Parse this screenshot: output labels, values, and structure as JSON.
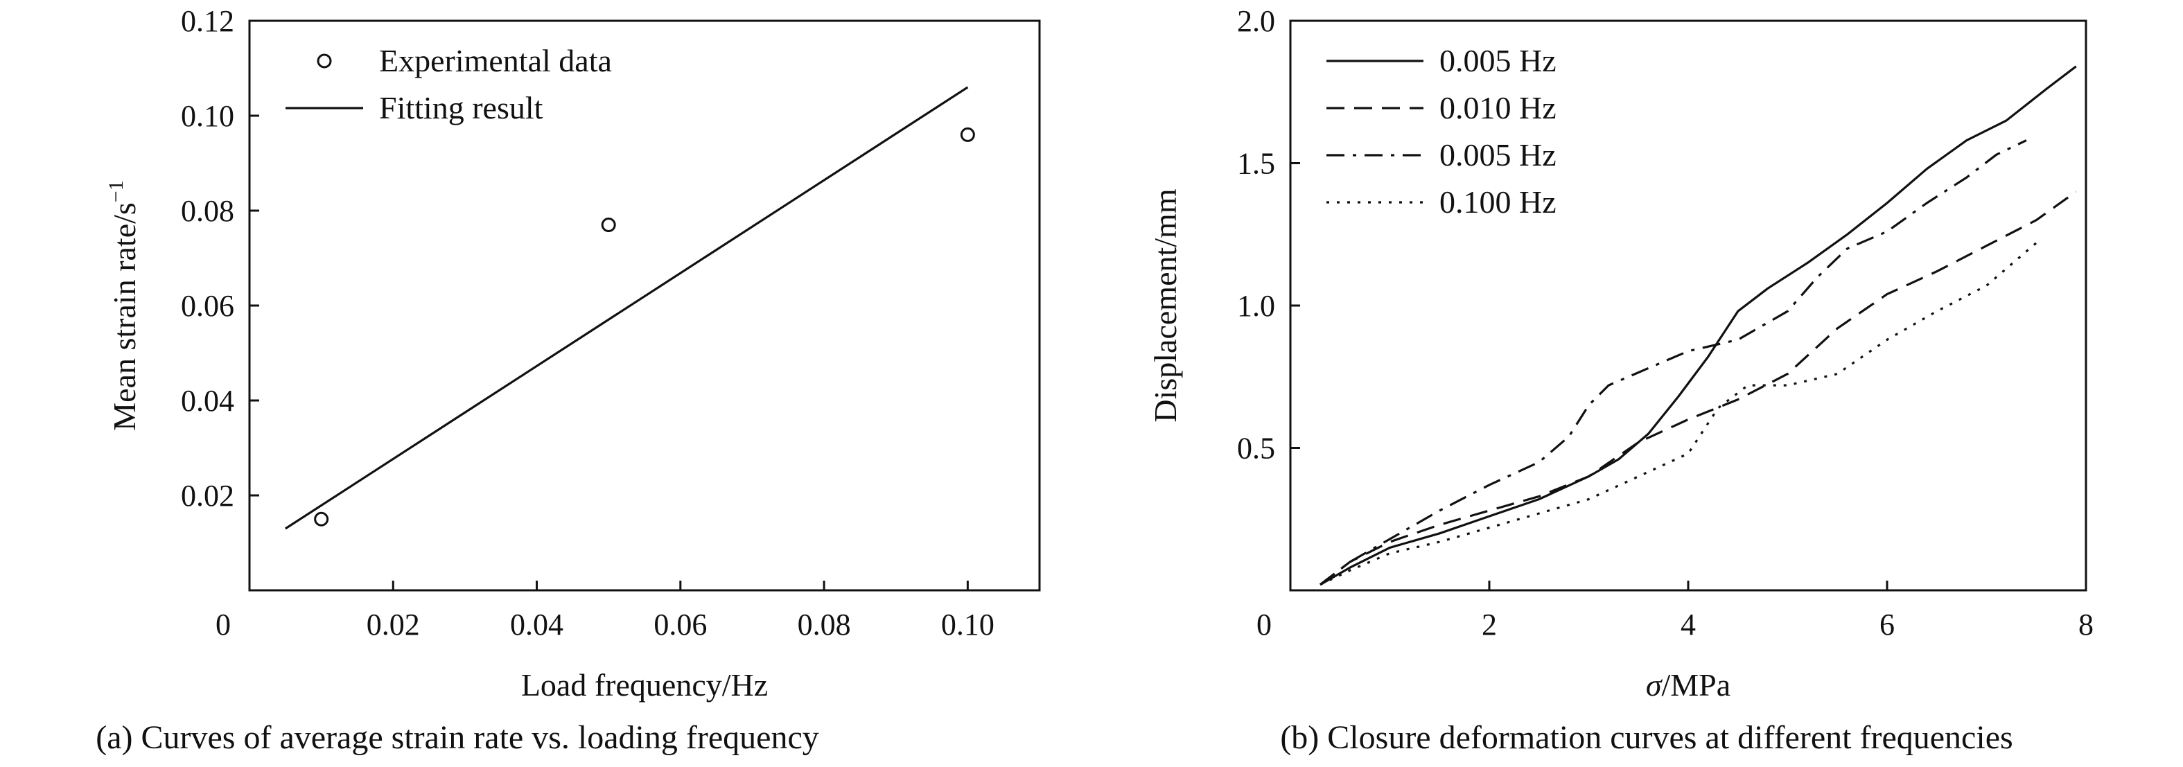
{
  "chart_data": [
    {
      "panel": "a",
      "type": "scatter",
      "caption": "(a) Curves of average strain rate vs. loading frequency",
      "xlabel": "Load frequency/Hz",
      "ylabel": "Mean strain rate/s",
      "ylabel_sup": "−1",
      "xlim": [
        0,
        0.11
      ],
      "ylim": [
        0,
        0.12
      ],
      "xticks": [
        0,
        0.02,
        0.04,
        0.06,
        0.08,
        0.1
      ],
      "xtick_labels": [
        "0",
        "0.02",
        "0.04",
        "0.06",
        "0.08",
        "0.10"
      ],
      "yticks": [
        0.02,
        0.04,
        0.06,
        0.08,
        0.1,
        0.12
      ],
      "ytick_labels": [
        "0.02",
        "0.04",
        "0.06",
        "0.08",
        "0.10",
        "0.12"
      ],
      "legend": [
        "Experimental data",
        "Fitting result"
      ],
      "legend_position": "top-left",
      "series": [
        {
          "name": "Experimental data",
          "kind": "points",
          "x": [
            0.01,
            0.05,
            0.1
          ],
          "y": [
            0.015,
            0.077,
            0.096
          ]
        },
        {
          "name": "Fitting result",
          "kind": "line",
          "x": [
            0.005,
            0.1
          ],
          "y": [
            0.013,
            0.106
          ]
        }
      ]
    },
    {
      "panel": "b",
      "type": "line",
      "caption": "(b) Closure deformation curves at different frequencies",
      "xlabel_italic": "σ",
      "xlabel": "/MPa",
      "ylabel": "Displacement/mm",
      "xlim": [
        0,
        8
      ],
      "ylim": [
        0,
        2.0
      ],
      "xticks": [
        0,
        2,
        4,
        6,
        8
      ],
      "xtick_labels": [
        "0",
        "2",
        "4",
        "6",
        "8"
      ],
      "yticks": [
        0.5,
        1.0,
        1.5,
        2.0
      ],
      "ytick_labels": [
        "0.5",
        "1.0",
        "1.5",
        "2.0"
      ],
      "legend_position": "top-left",
      "series": [
        {
          "name": "0.005 Hz",
          "dash": "solid",
          "x": [
            0.3,
            0.6,
            1.0,
            1.5,
            2.0,
            2.5,
            3.0,
            3.3,
            3.6,
            3.9,
            4.2,
            4.5,
            4.8,
            5.2,
            5.6,
            6.0,
            6.4,
            6.8,
            7.2,
            7.6,
            7.9
          ],
          "y": [
            0.02,
            0.08,
            0.15,
            0.2,
            0.26,
            0.32,
            0.4,
            0.46,
            0.55,
            0.68,
            0.82,
            0.98,
            1.06,
            1.15,
            1.25,
            1.36,
            1.48,
            1.58,
            1.65,
            1.76,
            1.84
          ]
        },
        {
          "name": "0.010 Hz",
          "dash": "dashed",
          "x": [
            0.3,
            0.6,
            1.0,
            1.5,
            2.0,
            2.5,
            3.0,
            3.5,
            4.0,
            4.5,
            5.0,
            5.5,
            6.0,
            6.5,
            7.0,
            7.5,
            7.9
          ],
          "y": [
            0.02,
            0.1,
            0.17,
            0.23,
            0.28,
            0.33,
            0.4,
            0.52,
            0.6,
            0.67,
            0.76,
            0.92,
            1.04,
            1.12,
            1.21,
            1.3,
            1.4
          ]
        },
        {
          "name": "0.005 Hz",
          "dash": "dashdot",
          "x": [
            0.3,
            0.6,
            1.0,
            1.5,
            2.0,
            2.5,
            2.8,
            3.0,
            3.2,
            3.6,
            4.0,
            4.5,
            5.0,
            5.3,
            5.6,
            6.0,
            6.4,
            6.8,
            7.1,
            7.4
          ],
          "y": [
            0.02,
            0.1,
            0.18,
            0.28,
            0.37,
            0.45,
            0.54,
            0.65,
            0.72,
            0.78,
            0.84,
            0.88,
            0.98,
            1.1,
            1.2,
            1.26,
            1.36,
            1.45,
            1.53,
            1.58
          ]
        },
        {
          "name": "0.100 Hz",
          "dash": "dotted",
          "x": [
            0.3,
            0.6,
            1.0,
            1.5,
            2.0,
            2.5,
            3.0,
            3.5,
            4.0,
            4.3,
            4.6,
            5.0,
            5.5,
            6.0,
            6.5,
            7.0,
            7.5
          ],
          "y": [
            0.02,
            0.07,
            0.13,
            0.17,
            0.22,
            0.27,
            0.32,
            0.4,
            0.48,
            0.64,
            0.72,
            0.72,
            0.76,
            0.88,
            0.98,
            1.07,
            1.22
          ]
        }
      ]
    }
  ]
}
